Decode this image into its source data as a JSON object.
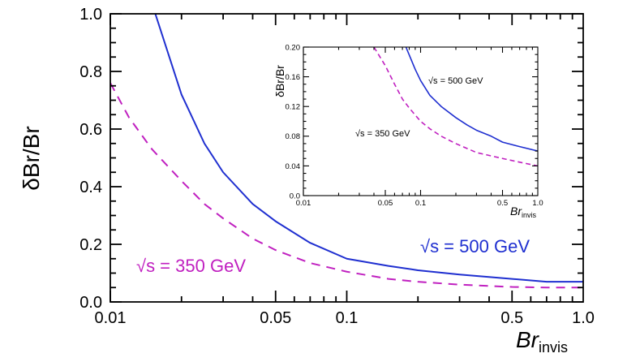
{
  "chart_data": [
    {
      "type": "line",
      "role": "main",
      "title": "",
      "xlabel": "Br",
      "xlabel_subscript": "invis",
      "ylabel": "δBr/Br",
      "xscale": "log",
      "xlim": [
        0.01,
        1.0
      ],
      "ylim": [
        0.0,
        1.0
      ],
      "xticks": [
        0.01,
        0.05,
        0.1,
        0.5,
        1.0
      ],
      "xtick_labels": [
        "0.01",
        "0.05",
        "0.1",
        "0.5",
        "1.0"
      ],
      "yticks": [
        0.0,
        0.2,
        0.4,
        0.6,
        0.8,
        1.0
      ],
      "ytick_labels": [
        "0.0",
        "0.2",
        "0.4",
        "0.6",
        "0.8",
        "1.0"
      ],
      "grid": false,
      "series": [
        {
          "name": "√s = 500 GeV",
          "color": "#1f2fd0",
          "style": "solid",
          "x": [
            0.0155,
            0.02,
            0.025,
            0.03,
            0.04,
            0.05,
            0.07,
            0.1,
            0.15,
            0.2,
            0.3,
            0.5,
            0.7,
            1.0
          ],
          "y": [
            1.0,
            0.72,
            0.55,
            0.45,
            0.34,
            0.28,
            0.205,
            0.15,
            0.125,
            0.11,
            0.095,
            0.08,
            0.07,
            0.07
          ]
        },
        {
          "name": "√s = 350 GeV",
          "color": "#c020c0",
          "style": "dashed",
          "x": [
            0.01,
            0.012,
            0.015,
            0.02,
            0.025,
            0.03,
            0.04,
            0.05,
            0.07,
            0.1,
            0.15,
            0.2,
            0.3,
            0.5,
            0.7,
            1.0
          ],
          "y": [
            0.76,
            0.64,
            0.53,
            0.42,
            0.34,
            0.29,
            0.22,
            0.18,
            0.135,
            0.105,
            0.08,
            0.07,
            0.06,
            0.052,
            0.05,
            0.05
          ]
        }
      ],
      "annotations": [
        {
          "text": "√s = 350 GeV",
          "color": "#c020c0",
          "position": "lower-left"
        },
        {
          "text": "√s = 500 GeV",
          "color": "#1f2fd0",
          "position": "lower-right"
        }
      ]
    },
    {
      "type": "line",
      "role": "inset",
      "title": "",
      "xlabel": "Br",
      "xlabel_subscript": "invis",
      "ylabel": "δBr/Br",
      "xscale": "log",
      "xlim": [
        0.01,
        1.0
      ],
      "ylim": [
        0.0,
        0.2
      ],
      "xticks": [
        0.01,
        0.05,
        0.1,
        0.5,
        1.0
      ],
      "xtick_labels": [
        "0.01",
        "0.05",
        "0.1",
        "0.5",
        "1.0"
      ],
      "yticks": [
        0.0,
        0.04,
        0.08,
        0.12,
        0.16,
        0.2
      ],
      "ytick_labels": [
        "0.0",
        "0.04",
        "0.08",
        "0.12",
        "0.16",
        "0.20"
      ],
      "grid": false,
      "series": [
        {
          "name": "√s = 500 GeV",
          "color": "#1f2fd0",
          "style": "solid",
          "x": [
            0.075,
            0.09,
            0.1,
            0.12,
            0.15,
            0.2,
            0.25,
            0.3,
            0.4,
            0.5,
            0.7,
            1.0
          ],
          "y": [
            0.2,
            0.17,
            0.155,
            0.135,
            0.12,
            0.105,
            0.095,
            0.088,
            0.08,
            0.072,
            0.066,
            0.06
          ]
        },
        {
          "name": "√s = 350 GeV",
          "color": "#c020c0",
          "style": "dashed",
          "x": [
            0.04,
            0.05,
            0.06,
            0.07,
            0.08,
            0.1,
            0.12,
            0.15,
            0.2,
            0.3,
            0.5,
            0.7,
            1.0
          ],
          "y": [
            0.2,
            0.175,
            0.15,
            0.13,
            0.118,
            0.1,
            0.09,
            0.08,
            0.07,
            0.058,
            0.05,
            0.045,
            0.04
          ]
        }
      ],
      "annotations": [
        {
          "text": "√s = 500 GeV",
          "color": "#000000",
          "position": "top-right"
        },
        {
          "text": "√s = 350 GeV",
          "color": "#000000",
          "position": "center-left"
        }
      ]
    }
  ]
}
